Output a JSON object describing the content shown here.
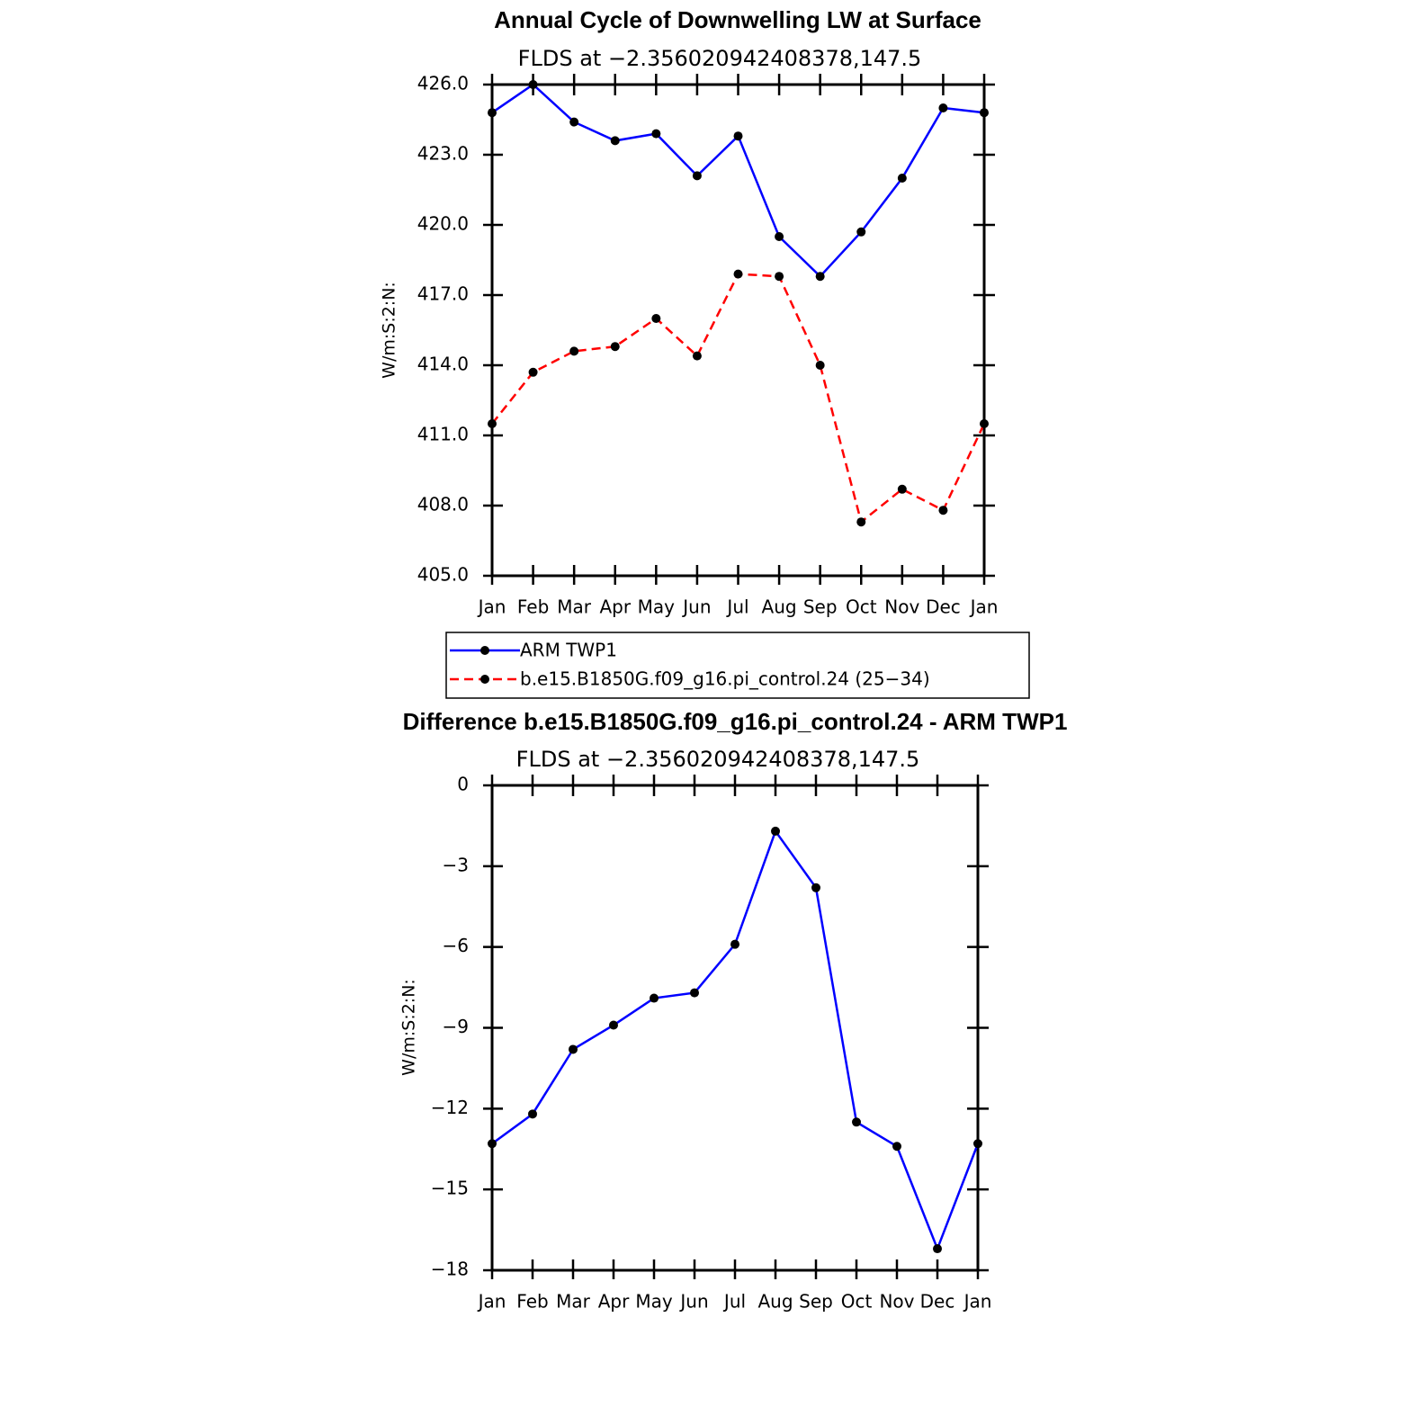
{
  "chart_data": [
    {
      "type": "line",
      "title": "Annual Cycle of Downwelling LW at Surface",
      "subtitle": "FLDS at −2.356020942408378,147.5",
      "y_label": "W/m:S:2:N:",
      "categories": [
        "Jan",
        "Feb",
        "Mar",
        "Apr",
        "May",
        "Jun",
        "Jul",
        "Aug",
        "Sep",
        "Oct",
        "Nov",
        "Dec",
        "Jan"
      ],
      "ylim": [
        405,
        426
      ],
      "yticks": [
        {
          "value": 405,
          "label": "405.0"
        },
        {
          "value": 408,
          "label": "408.0"
        },
        {
          "value": 411,
          "label": "411.0"
        },
        {
          "value": 414,
          "label": "414.0"
        },
        {
          "value": 417,
          "label": "417.0"
        },
        {
          "value": 420,
          "label": "420.0"
        },
        {
          "value": 423,
          "label": "423.0"
        },
        {
          "value": 426,
          "label": "426.0"
        }
      ],
      "marker_color": "#000000",
      "legend": "below",
      "series": [
        {
          "name": "ARM TWP1",
          "color": "#0000ff",
          "linestyle": "solid",
          "values": [
            424.8,
            426.0,
            424.4,
            423.6,
            423.9,
            422.1,
            423.8,
            419.5,
            417.8,
            419.7,
            422.0,
            425.0,
            424.8
          ]
        },
        {
          "name": "b.e15.B1850G.f09_g16.pi_control.24 (25−34)",
          "color": "#ff0000",
          "linestyle": "dashed",
          "values": [
            411.5,
            413.7,
            414.6,
            414.8,
            416.0,
            414.4,
            417.9,
            417.8,
            414.0,
            407.3,
            408.7,
            407.8,
            411.5
          ]
        }
      ]
    },
    {
      "type": "line",
      "title": "Difference b.e15.B1850G.f09_g16.pi_control.24 - ARM TWP1",
      "subtitle": "FLDS at −2.356020942408378,147.5",
      "y_label": "W/m:S:2:N:",
      "categories": [
        "Jan",
        "Feb",
        "Mar",
        "Apr",
        "May",
        "Jun",
        "Jul",
        "Aug",
        "Sep",
        "Oct",
        "Nov",
        "Dec",
        "Jan"
      ],
      "ylim": [
        -18,
        0
      ],
      "yticks": [
        {
          "value": -18,
          "label": "−18"
        },
        {
          "value": -15,
          "label": "−15"
        },
        {
          "value": -12,
          "label": "−12"
        },
        {
          "value": -9,
          "label": "−9"
        },
        {
          "value": -6,
          "label": "−6"
        },
        {
          "value": -3,
          "label": "−3"
        },
        0
      ],
      "marker_color": "#000000",
      "color": "#0000ff",
      "values": [
        -13.3,
        -12.2,
        -9.8,
        -8.9,
        -7.9,
        -7.7,
        -5.9,
        -1.7,
        -3.8,
        -12.5,
        -13.4,
        -17.2,
        -13.3
      ]
    }
  ]
}
